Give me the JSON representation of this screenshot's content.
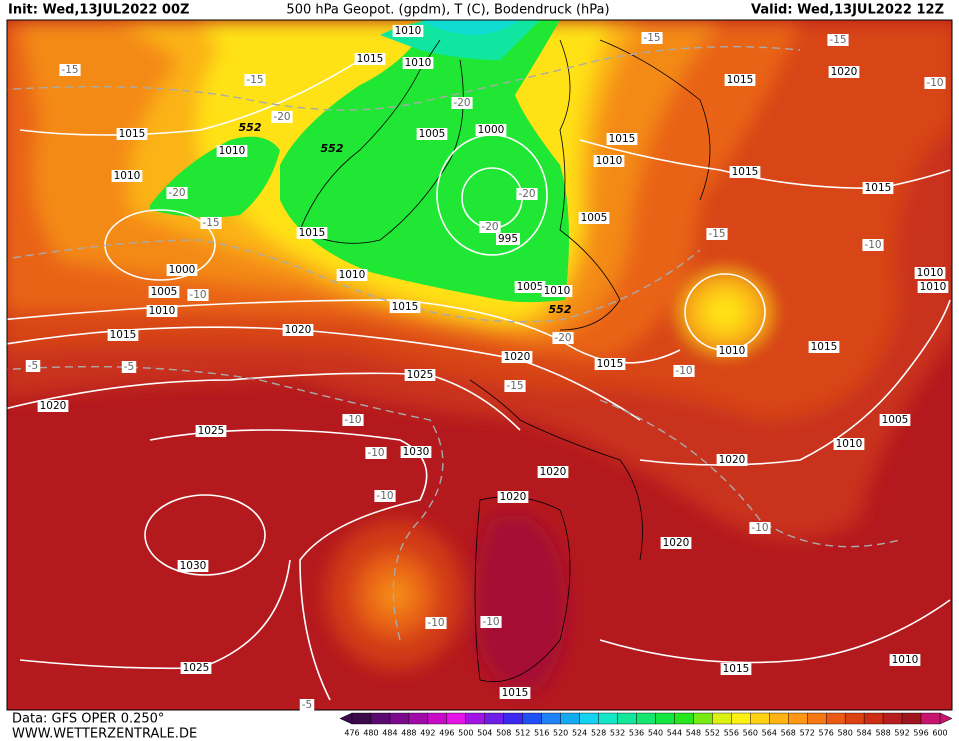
{
  "header": {
    "init": "Init: Wed,13JUL2022 00Z",
    "title": "500 hPa Geopot. (gpdm), T (C), Bodendruck (hPa)",
    "valid": "Valid: Wed,13JUL2022 12Z"
  },
  "isobar_labels": [
    1010,
    1015,
    1010,
    1015,
    1010,
    1010,
    1005,
    1000,
    1015,
    1020,
    1015,
    1010,
    1015,
    1015,
    1005,
    995,
    1015,
    1000,
    1010,
    1005,
    1010,
    1005,
    1010,
    1015,
    1020,
    1015,
    1020,
    1015,
    1010,
    1015,
    1010,
    1010,
    1025,
    1020,
    1025,
    1030,
    1020,
    1020,
    1010,
    1005,
    1020,
    1030,
    1020,
    1025,
    1015,
    1010,
    1015
  ],
  "temperature_labels": [
    -15,
    -15,
    -15,
    -10,
    -15,
    -20,
    -20,
    -20,
    -15,
    -20,
    -20,
    -15,
    -10,
    -10,
    -20,
    -5,
    -5,
    -10,
    -15,
    -10,
    -10,
    -10,
    -10,
    -10,
    -10,
    -5
  ],
  "height_labels": [
    552,
    552,
    552
  ],
  "legend": {
    "values": [
      476,
      480,
      484,
      488,
      492,
      496,
      500,
      504,
      508,
      512,
      516,
      520,
      524,
      528,
      532,
      536,
      540,
      544,
      548,
      552,
      556,
      560,
      564,
      568,
      572,
      576,
      580,
      584,
      588,
      592,
      596,
      600
    ],
    "colors": [
      "#3c0a4a",
      "#5a0a6e",
      "#7a0a8c",
      "#a00aa8",
      "#c80ac8",
      "#e614e6",
      "#a014e6",
      "#6e1ee6",
      "#3c28f0",
      "#1e50f5",
      "#1e82f5",
      "#14aaf0",
      "#14d2f0",
      "#14e6c8",
      "#14e69b",
      "#14e66e",
      "#14e641",
      "#28e61e",
      "#78eb14",
      "#dcf014",
      "#fff014",
      "#ffd214",
      "#ffb414",
      "#ff9614",
      "#f57814",
      "#eb5a14",
      "#dc4114",
      "#cd2d14",
      "#b91e1e",
      "#a0141e",
      "#c8146e"
    ]
  },
  "footer": {
    "data": "Data: GFS OPER 0.250°",
    "site": "WWW.WETTERZENTRALE.DE"
  }
}
